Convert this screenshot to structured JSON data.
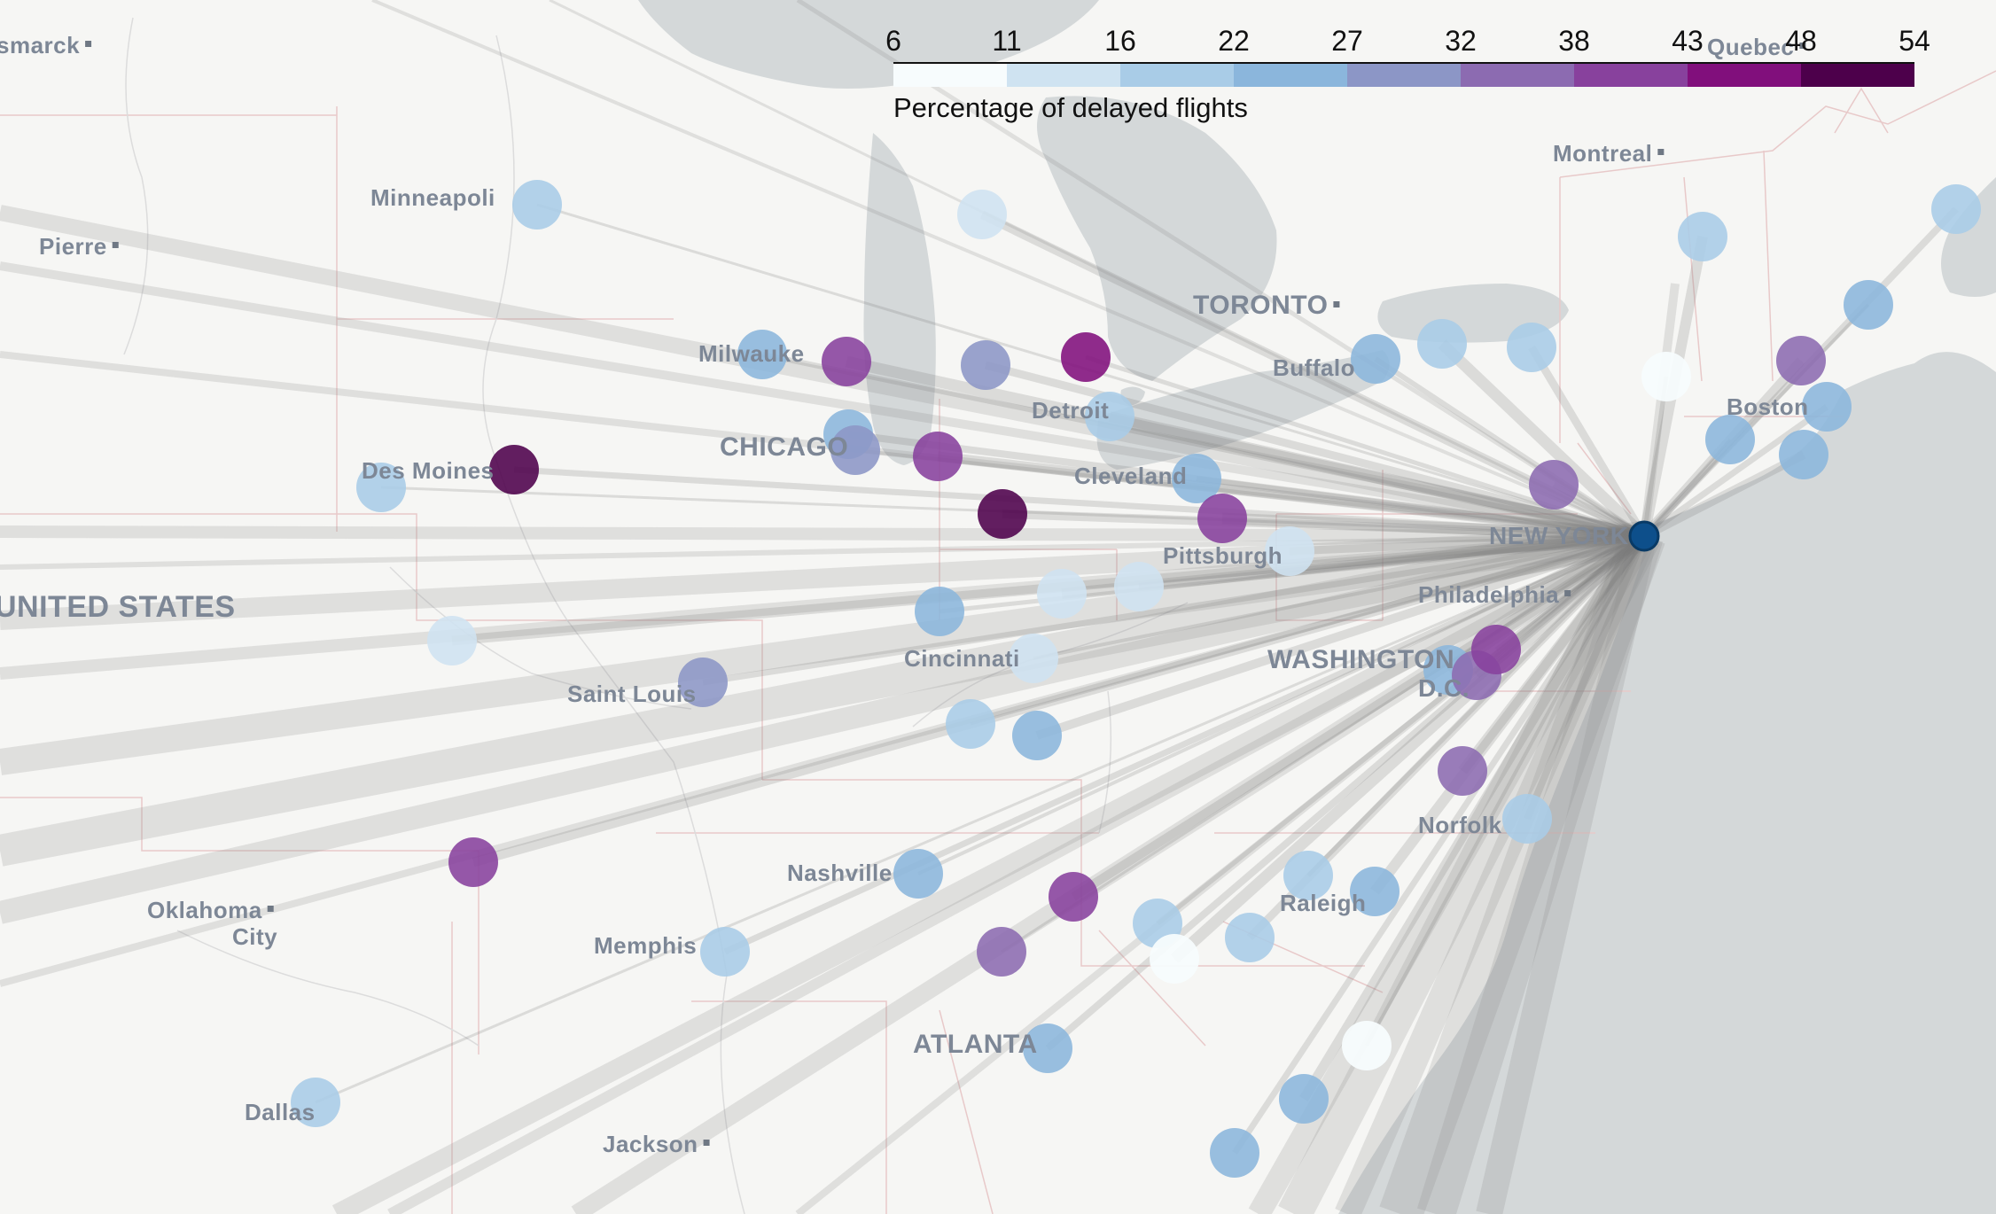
{
  "legend": {
    "title": "Percentage of delayed flights",
    "ticks": [
      "6",
      "11",
      "16",
      "22",
      "27",
      "32",
      "38",
      "43",
      "48",
      "54"
    ],
    "colors": [
      "#f7fcfd",
      "#cfe3f1",
      "#a9cce7",
      "#8bb6dc",
      "#8c96c6",
      "#8c6bb1",
      "#88419d",
      "#810f7c",
      "#4d004b"
    ]
  },
  "map_labels": [
    {
      "id": "bismarck",
      "text": "smarck"
    },
    {
      "id": "pierre",
      "text": "Pierre"
    },
    {
      "id": "minneapolis",
      "text": "Minneapoli"
    },
    {
      "id": "milwaukee",
      "text": "Milwauke"
    },
    {
      "id": "chicago",
      "text": "CHICAGO"
    },
    {
      "id": "des-moines",
      "text": "Des Moines"
    },
    {
      "id": "united-states",
      "text": "UNITED STATES"
    },
    {
      "id": "saint-louis",
      "text": "Saint Louis"
    },
    {
      "id": "cincinnati",
      "text": "Cincinnati"
    },
    {
      "id": "detroit",
      "text": "Detroit"
    },
    {
      "id": "cleveland",
      "text": "Cleveland"
    },
    {
      "id": "pittsburgh",
      "text": "Pittsburgh"
    },
    {
      "id": "toronto",
      "text": "TORONTO"
    },
    {
      "id": "buffalo",
      "text": "Buffalo"
    },
    {
      "id": "montreal",
      "text": "Montreal"
    },
    {
      "id": "quebec",
      "text": "Quebec"
    },
    {
      "id": "boston",
      "text": "Boston"
    },
    {
      "id": "new-york",
      "text": "NEW YORK"
    },
    {
      "id": "philadelphia",
      "text": "Philadelphia"
    },
    {
      "id": "washington",
      "text": "WASHINGTON"
    },
    {
      "id": "dc",
      "text": "D.C."
    },
    {
      "id": "norfolk",
      "text": "Norfolk"
    },
    {
      "id": "raleigh",
      "text": "Raleigh"
    },
    {
      "id": "nashville",
      "text": "Nashville"
    },
    {
      "id": "memphis",
      "text": "Memphis"
    },
    {
      "id": "oklahoma",
      "text": "Oklahoma"
    },
    {
      "id": "city",
      "text": "City"
    },
    {
      "id": "atlanta",
      "text": "ATLANTA"
    },
    {
      "id": "dallas",
      "text": "Dallas"
    },
    {
      "id": "jackson",
      "text": "Jackson"
    }
  ]
}
